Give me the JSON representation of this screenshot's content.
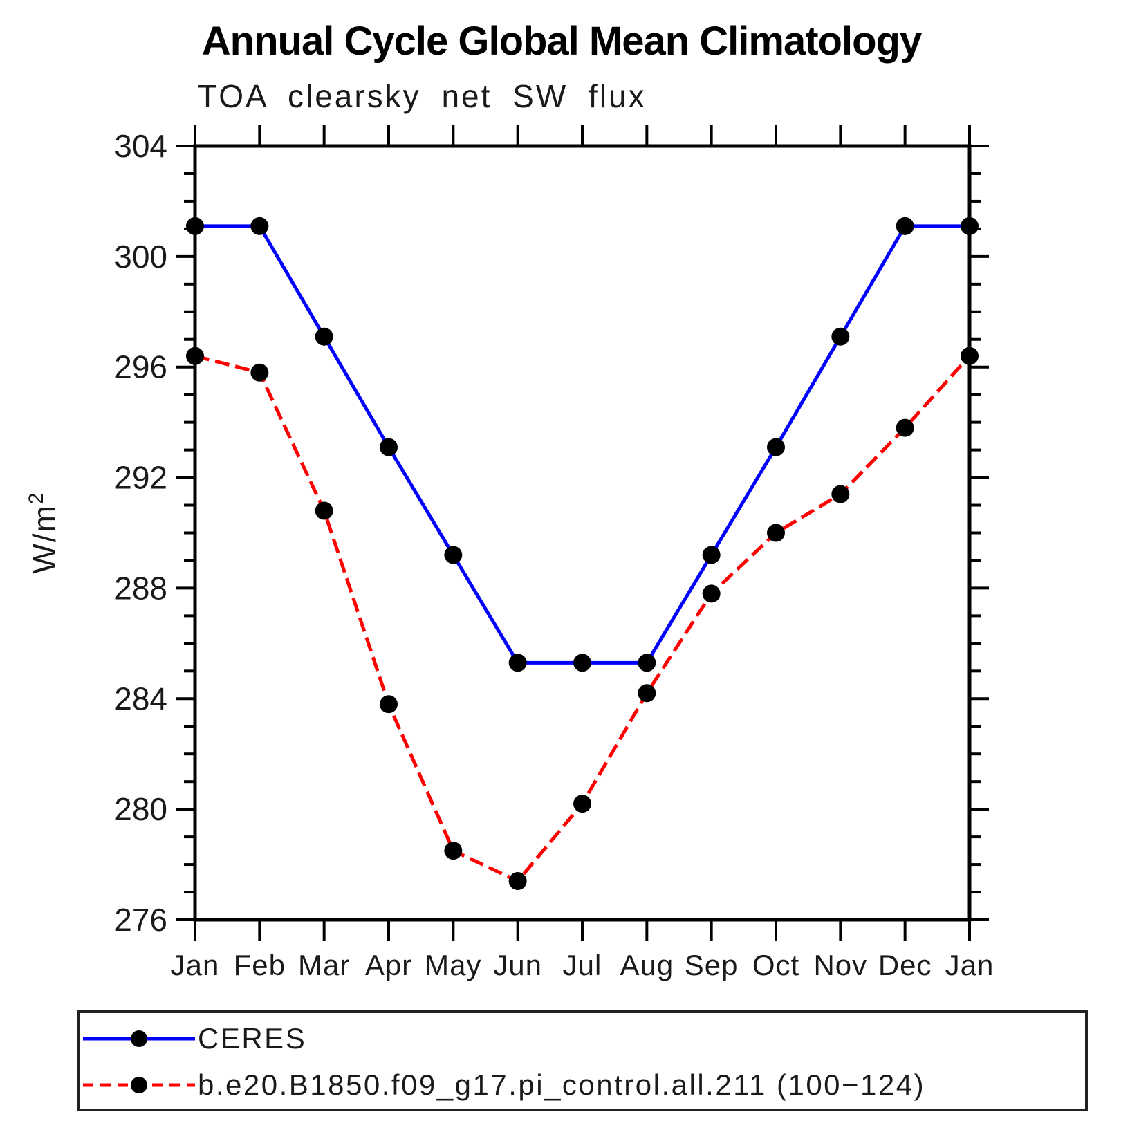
{
  "title": "Annual Cycle Global Mean Climatology",
  "subtitle": "TOA clearsky net SW flux",
  "y_axis": {
    "label": "W/m²",
    "min": 276,
    "max": 304,
    "major_step": 4,
    "minor_step": 1,
    "tick_labels": [
      "276",
      "280",
      "284",
      "288",
      "292",
      "296",
      "300",
      "304"
    ]
  },
  "x_axis": {
    "tick_labels": [
      "Jan",
      "Feb",
      "Mar",
      "Apr",
      "May",
      "Jun",
      "Jul",
      "Aug",
      "Sep",
      "Oct",
      "Nov",
      "Dec",
      "Jan"
    ]
  },
  "legend": [
    {
      "label": "CERES",
      "color": "#0000ff",
      "style": "solid",
      "marker": "circle"
    },
    {
      "label": "b.e20.B1850.f09_g17.pi_control.all.211 (100−124)",
      "color": "#ff0000",
      "style": "dashed",
      "marker": "circle"
    }
  ],
  "chart_data": {
    "type": "line",
    "title": "Annual Cycle Global Mean Climatology",
    "subtitle": "TOA clearsky net SW flux",
    "xlabel": "",
    "ylabel": "W/m²",
    "ylim": [
      276,
      304
    ],
    "y_major_step": 4,
    "y_minor_step": 1,
    "grid": false,
    "legend_position": "bottom",
    "categories": [
      "Jan",
      "Feb",
      "Mar",
      "Apr",
      "May",
      "Jun",
      "Jul",
      "Aug",
      "Sep",
      "Oct",
      "Nov",
      "Dec",
      "Jan"
    ],
    "series": [
      {
        "name": "CERES",
        "color": "#0000ff",
        "line": "solid",
        "marker": "circle",
        "marker_color": "#000000",
        "values": [
          301.1,
          301.1,
          297.1,
          293.1,
          289.2,
          285.3,
          285.3,
          285.3,
          289.2,
          293.1,
          297.1,
          301.1,
          301.1
        ]
      },
      {
        "name": "b.e20.B1850.f09_g17.pi_control.all.211 (100−124)",
        "color": "#ff0000",
        "line": "dashed",
        "marker": "circle",
        "marker_color": "#000000",
        "values": [
          296.4,
          295.8,
          290.8,
          283.8,
          278.5,
          277.4,
          280.2,
          284.2,
          287.8,
          290.0,
          291.4,
          293.8,
          296.4
        ]
      }
    ]
  }
}
